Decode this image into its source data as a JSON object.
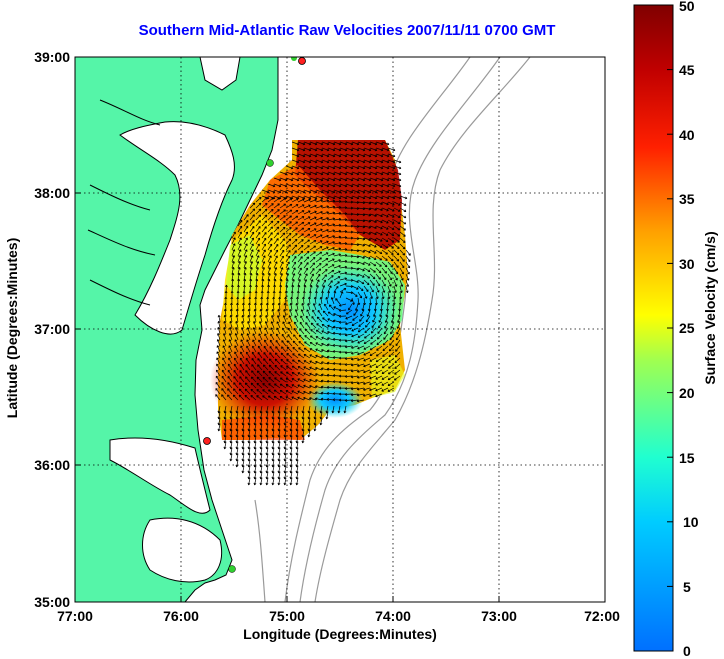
{
  "title": "Southern Mid-Atlantic Raw Velocities 2007/11/11 0700 GMT",
  "axes": {
    "xlabel": "Longitude (Degrees:Minutes)",
    "ylabel": "Latitude (Degrees:Minutes)",
    "x_ticks": [
      "77:00",
      "76:00",
      "75:00",
      "74:00",
      "73:00",
      "72:00"
    ],
    "y_ticks": [
      "39:00",
      "38:00",
      "37:00",
      "36:00",
      "35:00"
    ],
    "xlim_deg_west": [
      77,
      72
    ],
    "ylim_deg_north": [
      35,
      39
    ],
    "grid": "dotted"
  },
  "colorbar": {
    "label": "Surface Velocity (cm/s)",
    "ticks": [
      "50",
      "45",
      "40",
      "35",
      "30",
      "25",
      "20",
      "15",
      "10",
      "5",
      "0"
    ],
    "range": [
      0,
      50
    ],
    "colormap": "jet"
  },
  "colors": {
    "land": "#55f5a8",
    "water": "#ffffff",
    "coastline": "#000000",
    "bathymetry": "#9a9a9a",
    "title": "#0000ff"
  },
  "stations": [
    {
      "name": "station-north",
      "color": "#ff2020"
    },
    {
      "name": "station-delmarva",
      "color": "#30d030"
    },
    {
      "name": "station-va",
      "color": "#ff2020"
    },
    {
      "name": "station-hatteras",
      "color": "#30d030"
    }
  ]
}
